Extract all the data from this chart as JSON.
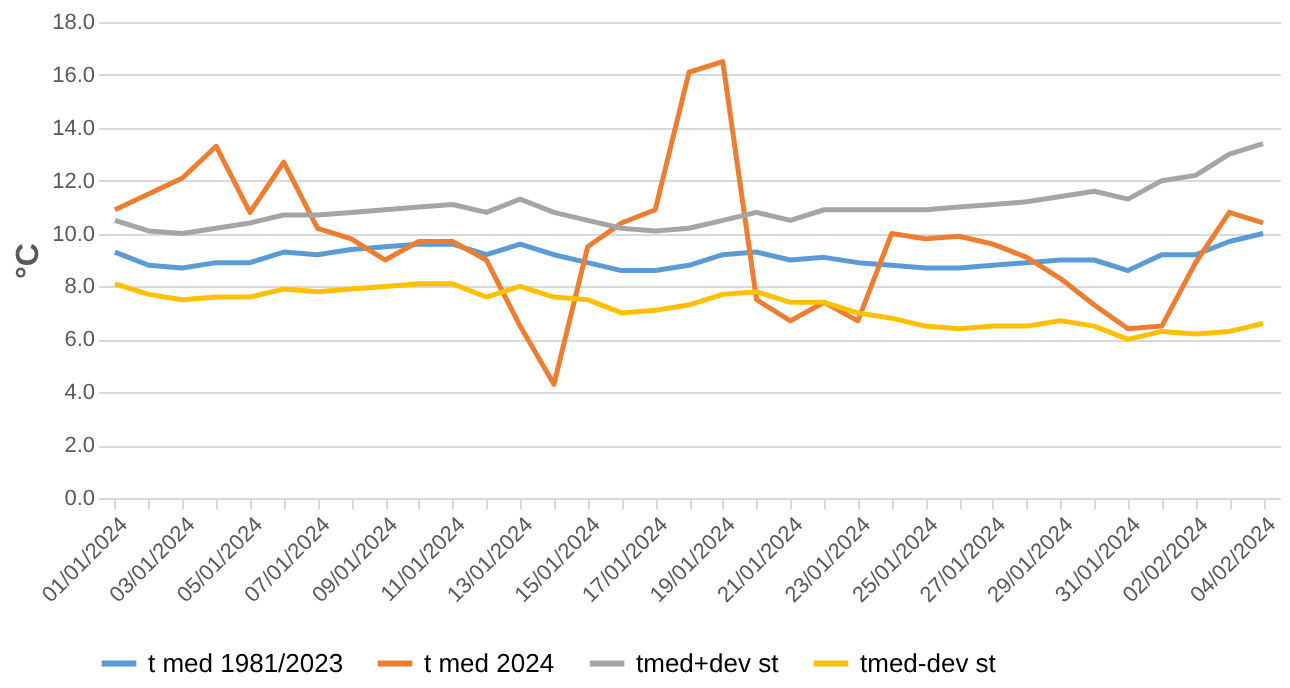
{
  "chart_data": {
    "type": "line",
    "categories": [
      "01/01/2024",
      null,
      "03/01/2024",
      null,
      "05/01/2024",
      null,
      "07/01/2024",
      null,
      "09/01/2024",
      null,
      "11/01/2024",
      null,
      "13/01/2024",
      null,
      "15/01/2024",
      null,
      "17/01/2024",
      null,
      "19/01/2024",
      null,
      "21/01/2024",
      null,
      "23/01/2024",
      null,
      "25/01/2024",
      null,
      "27/01/2024",
      null,
      "29/01/2024",
      null,
      "31/01/2024",
      null,
      "02/02/2024",
      null,
      "04/02/2024"
    ],
    "series": [
      {
        "name": "t med 1981/2023",
        "color": "#5b9bd5",
        "values": [
          9.3,
          8.8,
          8.7,
          8.9,
          8.9,
          9.3,
          9.2,
          9.4,
          9.5,
          9.6,
          9.6,
          9.2,
          9.6,
          9.2,
          8.9,
          8.6,
          8.6,
          8.8,
          9.2,
          9.3,
          9.0,
          9.1,
          8.9,
          8.8,
          8.7,
          8.7,
          8.8,
          8.9,
          9.0,
          9.0,
          8.6,
          9.2,
          9.2,
          9.7,
          10.0
        ]
      },
      {
        "name": "t med 2024",
        "color": "#ed7d31",
        "values": [
          10.9,
          11.5,
          12.1,
          13.3,
          10.8,
          12.7,
          10.2,
          9.8,
          9.0,
          9.7,
          9.7,
          9.0,
          6.5,
          4.3,
          9.5,
          10.4,
          10.9,
          16.1,
          16.5,
          7.5,
          6.7,
          7.4,
          6.7,
          10.0,
          9.8,
          9.9,
          9.6,
          9.1,
          8.3,
          7.3,
          6.4,
          6.5,
          8.9,
          10.8,
          10.4
        ]
      },
      {
        "name": "tmed+dev st",
        "color": "#a5a5a5",
        "values": [
          10.5,
          10.1,
          10.0,
          10.2,
          10.4,
          10.7,
          10.7,
          10.8,
          10.9,
          11.0,
          11.1,
          10.8,
          11.3,
          10.8,
          10.5,
          10.2,
          10.1,
          10.2,
          10.5,
          10.8,
          10.5,
          10.9,
          10.9,
          10.9,
          10.9,
          11.0,
          11.1,
          11.2,
          11.4,
          11.6,
          11.3,
          12.0,
          12.2,
          13.0,
          13.4
        ]
      },
      {
        "name": "tmed-dev st",
        "color": "#ffc000",
        "values": [
          8.1,
          7.7,
          7.5,
          7.6,
          7.6,
          7.9,
          7.8,
          7.9,
          8.0,
          8.1,
          8.1,
          7.6,
          8.0,
          7.6,
          7.5,
          7.0,
          7.1,
          7.3,
          7.7,
          7.8,
          7.4,
          7.4,
          7.0,
          6.8,
          6.5,
          6.4,
          6.5,
          6.5,
          6.7,
          6.5,
          6.0,
          6.3,
          6.2,
          6.3,
          6.6
        ]
      }
    ],
    "ylabel": "°C",
    "ylim": [
      0,
      18
    ],
    "yticks": [
      {
        "value": 0,
        "label": "0.0"
      },
      {
        "value": 2,
        "label": "2.0"
      },
      {
        "value": 4,
        "label": "4.0"
      },
      {
        "value": 6,
        "label": "6.0"
      },
      {
        "value": 8,
        "label": "8.0"
      },
      {
        "value": 10,
        "label": "10.0"
      },
      {
        "value": 12,
        "label": "12.0"
      },
      {
        "value": 14,
        "label": "14.0"
      },
      {
        "value": 16,
        "label": "16.0"
      },
      {
        "value": 18,
        "label": "18.0"
      }
    ],
    "grid": "y",
    "legend": "bottom",
    "marker": "none",
    "line_style": "solid"
  }
}
